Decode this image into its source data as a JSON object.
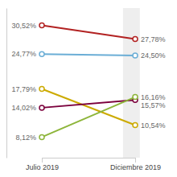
{
  "chart_data": {
    "type": "line",
    "categories": [
      "Julio 2019",
      "Diciembre 2019"
    ],
    "series": [
      {
        "color": "#b22222",
        "values": [
          30.52,
          27.78
        ],
        "value_labels": [
          "30,52%",
          "27,78%"
        ]
      },
      {
        "color": "#6baed6",
        "values": [
          24.77,
          24.5
        ],
        "value_labels": [
          "24,77%",
          "24,50%"
        ]
      },
      {
        "color": "#ccaa00",
        "values": [
          17.79,
          10.54
        ],
        "value_labels": [
          "17,79%",
          "10,54%"
        ]
      },
      {
        "color": "#7b003c",
        "values": [
          14.02,
          15.57
        ],
        "value_labels": [
          "14,02%",
          "15,57%"
        ]
      },
      {
        "color": "#8db53a",
        "values": [
          8.12,
          16.16
        ],
        "value_labels": [
          "8,12%",
          "16,16%"
        ]
      }
    ],
    "ylim": [
      4,
      34
    ],
    "marker": "circle",
    "data_labels": true,
    "tick_labels": "x",
    "grid": false
  }
}
